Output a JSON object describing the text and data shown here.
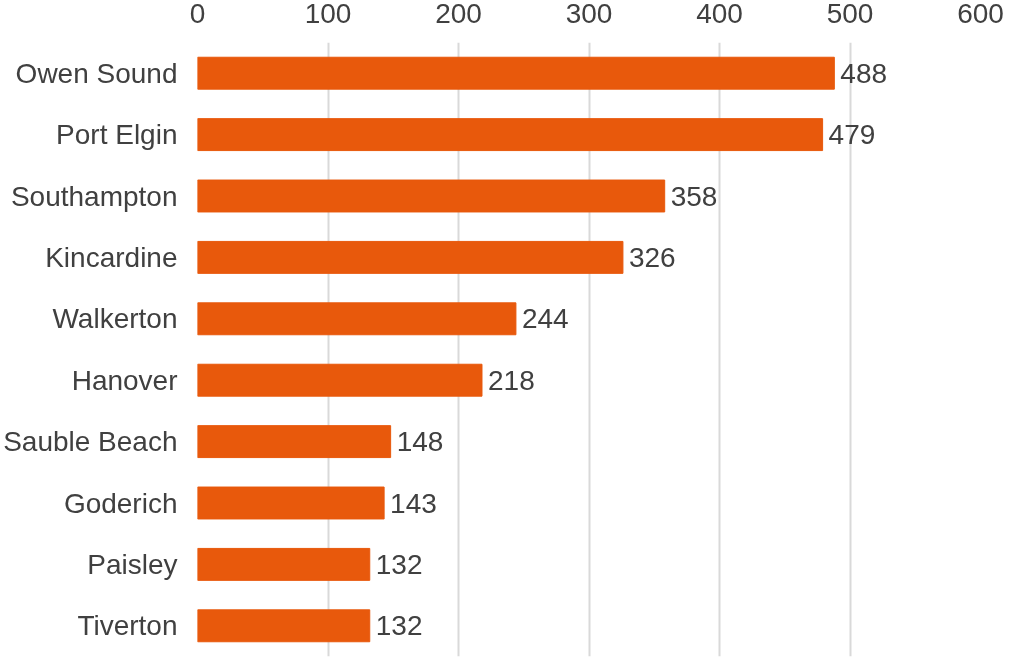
{
  "chart_data": {
    "type": "bar",
    "orientation": "horizontal",
    "categories": [
      "Owen Sound",
      "Port Elgin",
      "Southampton",
      "Kincardine",
      "Walkerton",
      "Hanover",
      "Sauble Beach",
      "Goderich",
      "Paisley",
      "Tiverton"
    ],
    "values": [
      488,
      479,
      358,
      326,
      244,
      218,
      148,
      143,
      132,
      132
    ],
    "color": "#e8590c",
    "xlim": [
      0,
      600
    ],
    "xticks": [
      0,
      100,
      200,
      300,
      400,
      500,
      600
    ],
    "grid": "x",
    "data_labels": true
  }
}
